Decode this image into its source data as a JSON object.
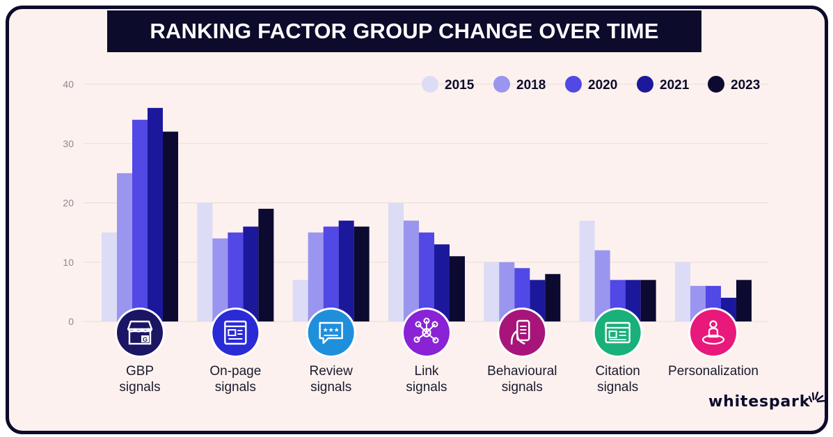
{
  "header": {
    "title": "RANKING FACTOR GROUP CHANGE OVER TIME"
  },
  "brand": {
    "logo_text": "whitespark"
  },
  "chart_data": {
    "type": "bar",
    "title": "RANKING FACTOR GROUP CHANGE OVER TIME",
    "xlabel": "",
    "ylabel": "",
    "ylim": [
      0,
      40
    ],
    "yticks": [
      0,
      10,
      20,
      30,
      40
    ],
    "grid": true,
    "legend_position": "top-right",
    "categories": [
      {
        "lines": [
          "GBP",
          "signals"
        ],
        "icon": "storefront-icon",
        "icon_color": "#1a1663"
      },
      {
        "lines": [
          "On-page",
          "signals"
        ],
        "icon": "webpage-icon",
        "icon_color": "#2a2ad6"
      },
      {
        "lines": [
          "Review",
          "signals"
        ],
        "icon": "review-stars-icon",
        "icon_color": "#1f8fdc"
      },
      {
        "lines": [
          "Link",
          "signals"
        ],
        "icon": "link-network-icon",
        "icon_color": "#8a22d6"
      },
      {
        "lines": [
          "Behavioural",
          "signals"
        ],
        "icon": "phone-hand-icon",
        "icon_color": "#a8157a"
      },
      {
        "lines": [
          "Citation",
          "signals"
        ],
        "icon": "listing-icon",
        "icon_color": "#19b07a"
      },
      {
        "lines": [
          "Personalization"
        ],
        "icon": "person-location-icon",
        "icon_color": "#e8197a"
      }
    ],
    "series": [
      {
        "name": "2015",
        "color": "#dcdcf7",
        "values": [
          15,
          20,
          7,
          20,
          10,
          17,
          10
        ]
      },
      {
        "name": "2018",
        "color": "#9a95ee",
        "values": [
          25,
          14,
          15,
          17,
          10,
          12,
          6
        ]
      },
      {
        "name": "2020",
        "color": "#5148e6",
        "values": [
          34,
          15,
          16,
          15,
          9,
          7,
          6
        ]
      },
      {
        "name": "2021",
        "color": "#1c189c",
        "values": [
          36,
          16,
          17,
          13,
          7,
          7,
          4
        ]
      },
      {
        "name": "2023",
        "color": "#0c0a30",
        "values": [
          32,
          19,
          16,
          11,
          8,
          7,
          7
        ]
      }
    ]
  }
}
